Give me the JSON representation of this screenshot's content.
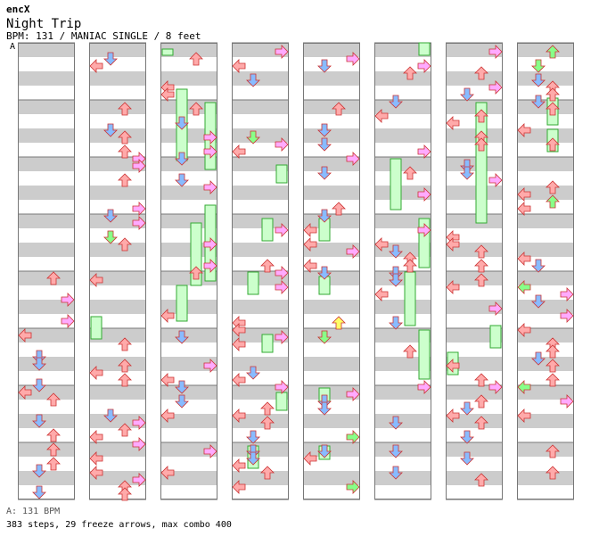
{
  "header": {
    "author": "encX",
    "title": "Night Trip",
    "info": "BPM: 131 / MANIAC SINGLE / 8 feet"
  },
  "speed_marker": "A",
  "footer": {
    "bpm_label": "A: 131 BPM",
    "stats": "383 steps, 29 freeze arrows, max combo 400"
  },
  "colors": {
    "left": "#ffaaaa",
    "down": "#aaccff",
    "up": "#ffaaaa",
    "right": "#ffaaff",
    "quarter_alt": "#ffaaff",
    "sixteenth": "#88ff88",
    "twentyfourth": "#ffff66",
    "freeze_fill": "#ccffcc",
    "stripe": "#cccccc"
  },
  "chart_data": {
    "type": "step-chart",
    "columns": 8,
    "measures_per_column": 8,
    "total_steps": 383,
    "freeze_arrows": 29,
    "max_combo": 400,
    "bpm": 131,
    "difficulty": "MANIAC SINGLE",
    "feet": 8
  }
}
